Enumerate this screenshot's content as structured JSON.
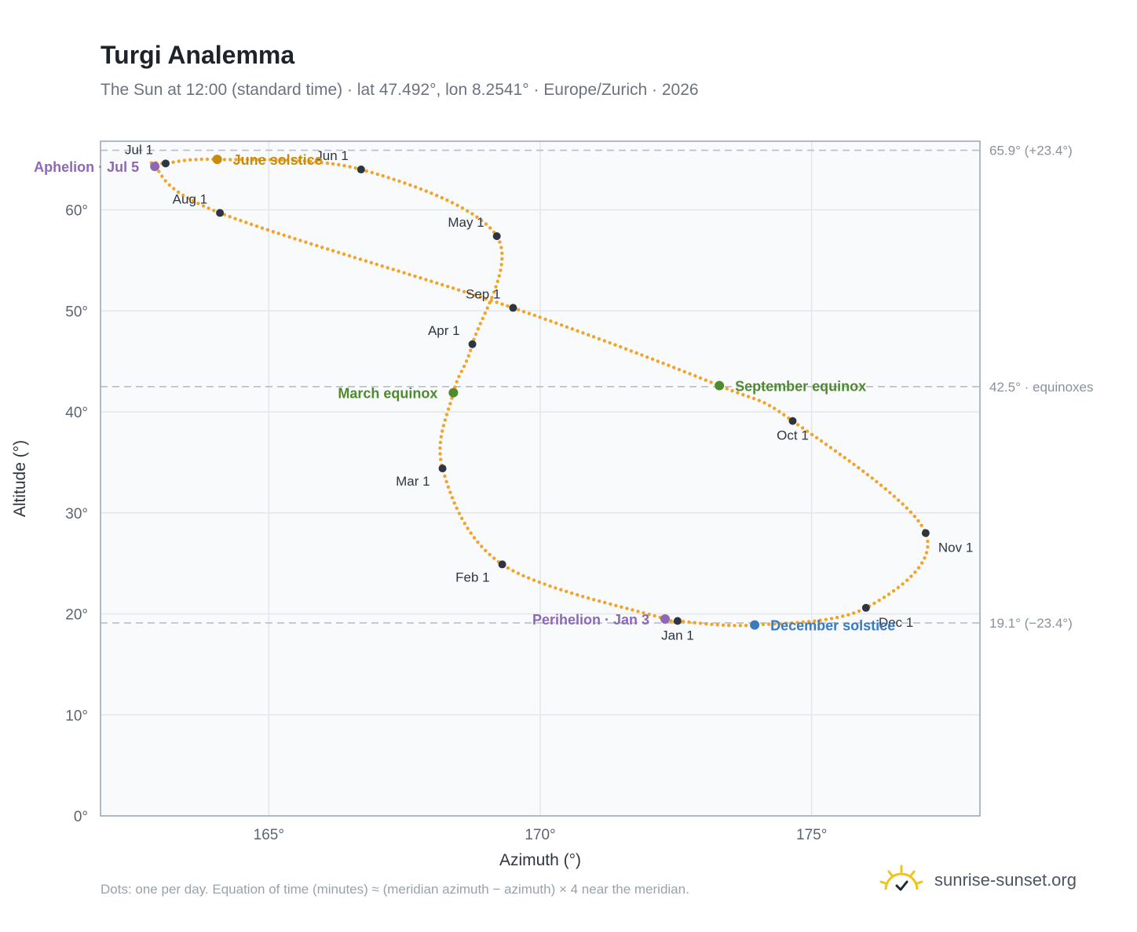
{
  "header": {
    "title": "Turgi Analemma",
    "subtitle": "The Sun at 12:00 (standard time) · lat 47.492°, lon 8.2541° · Europe/Zurich · 2026"
  },
  "footer": {
    "note": "Dots: one per day. Equation of time (minutes) ≈ (meridian azimuth − azimuth) × 4 near the meridian.",
    "brand": "sunrise-sunset.org",
    "brand_icon": "sun-check-icon"
  },
  "colors": {
    "path": "#f2a42a",
    "month_marker": "#2f3540",
    "solstice_june": "#c98c0a",
    "equinox": "#4f8a2e",
    "solstice_december": "#3b7abf",
    "apsis": "#8e68b6",
    "plot_background": "#f8fafc",
    "grid": "#e3e7ec",
    "frame": "#9aa3b0",
    "reference_line": "#b8bec7"
  },
  "chart_data": {
    "type": "scatter",
    "xlabel": "Azimuth (°)",
    "ylabel": "Altitude (°)",
    "xlim": [
      161.9,
      178.1
    ],
    "ylim": [
      0,
      66.8
    ],
    "x_ticks": [
      {
        "value": 165,
        "label": "165°"
      },
      {
        "value": 170,
        "label": "170°"
      },
      {
        "value": 175,
        "label": "175°"
      }
    ],
    "y_ticks": [
      {
        "value": 0,
        "label": "0°"
      },
      {
        "value": 10,
        "label": "10°"
      },
      {
        "value": 20,
        "label": "20°"
      },
      {
        "value": 30,
        "label": "30°"
      },
      {
        "value": 40,
        "label": "40°"
      },
      {
        "value": 50,
        "label": "50°"
      },
      {
        "value": 60,
        "label": "60°"
      }
    ],
    "grid": true,
    "reference_lines": [
      {
        "altitude": 65.9,
        "label": "65.9° (+23.4°)"
      },
      {
        "altitude": 42.5,
        "label": "42.5° · equinoxes"
      },
      {
        "altitude": 19.1,
        "label": "19.1° (−23.4°)"
      }
    ],
    "path_anchors": [
      {
        "date": "Jan 1",
        "azimuth": 172.53,
        "altitude": 19.3
      },
      {
        "date": "Jan 3",
        "azimuth": 172.3,
        "altitude": 19.5
      },
      {
        "date": "Feb 1",
        "azimuth": 169.3,
        "altitude": 24.9
      },
      {
        "date": "Mar 1",
        "azimuth": 168.2,
        "altitude": 34.4
      },
      {
        "date": "Mar 20",
        "azimuth": 168.4,
        "altitude": 41.9
      },
      {
        "date": "Apr 1",
        "azimuth": 168.75,
        "altitude": 46.7
      },
      {
        "date": "May 1",
        "azimuth": 169.2,
        "altitude": 57.4
      },
      {
        "date": "Jun 1",
        "azimuth": 166.7,
        "altitude": 64.0
      },
      {
        "date": "Jun 21",
        "azimuth": 164.05,
        "altitude": 65.0
      },
      {
        "date": "Jul 1",
        "azimuth": 163.1,
        "altitude": 64.6
      },
      {
        "date": "Jul 5",
        "azimuth": 162.9,
        "altitude": 64.3
      },
      {
        "date": "Aug 1",
        "azimuth": 164.1,
        "altitude": 59.7
      },
      {
        "date": "Sep 1",
        "azimuth": 169.5,
        "altitude": 50.3
      },
      {
        "date": "Sep 23",
        "azimuth": 173.3,
        "altitude": 42.6
      },
      {
        "date": "Oct 1",
        "azimuth": 174.65,
        "altitude": 39.1
      },
      {
        "date": "Nov 1",
        "azimuth": 177.1,
        "altitude": 28.0
      },
      {
        "date": "Dec 1",
        "azimuth": 176.0,
        "altitude": 20.6
      },
      {
        "date": "Dec 21",
        "azimuth": 173.95,
        "altitude": 18.9
      },
      {
        "date": "Jan 1 (next)",
        "azimuth": 172.53,
        "altitude": 19.3
      }
    ],
    "month_markers": [
      {
        "label": "Jan 1",
        "azimuth": 172.53,
        "altitude": 19.3,
        "label_pos": "below"
      },
      {
        "label": "Feb 1",
        "azimuth": 169.3,
        "altitude": 24.9,
        "label_pos": "below-left"
      },
      {
        "label": "Mar 1",
        "azimuth": 168.2,
        "altitude": 34.4,
        "label_pos": "below-left"
      },
      {
        "label": "Apr 1",
        "azimuth": 168.75,
        "altitude": 46.7,
        "label_pos": "above-left"
      },
      {
        "label": "May 1",
        "azimuth": 169.2,
        "altitude": 57.4,
        "label_pos": "above-left"
      },
      {
        "label": "Jun 1",
        "azimuth": 166.7,
        "altitude": 64.0,
        "label_pos": "above-left"
      },
      {
        "label": "Jul 1",
        "azimuth": 163.1,
        "altitude": 64.6,
        "label_pos": "above-left"
      },
      {
        "label": "Aug 1",
        "azimuth": 164.1,
        "altitude": 59.7,
        "label_pos": "above-left"
      },
      {
        "label": "Sep 1",
        "azimuth": 169.5,
        "altitude": 50.3,
        "label_pos": "above-left"
      },
      {
        "label": "Oct 1",
        "azimuth": 174.65,
        "altitude": 39.1,
        "label_pos": "below"
      },
      {
        "label": "Nov 1",
        "azimuth": 177.1,
        "altitude": 28.0,
        "label_pos": "right"
      },
      {
        "label": "Dec 1",
        "azimuth": 176.0,
        "altitude": 20.6,
        "label_pos": "right"
      }
    ],
    "events": [
      {
        "label": "June solstice",
        "azimuth": 164.05,
        "altitude": 65.0,
        "color_key": "solstice_june",
        "label_pos": "right"
      },
      {
        "label": "March equinox",
        "azimuth": 168.4,
        "altitude": 41.9,
        "color_key": "equinox",
        "label_pos": "left"
      },
      {
        "label": "September equinox",
        "azimuth": 173.3,
        "altitude": 42.6,
        "color_key": "equinox",
        "label_pos": "right"
      },
      {
        "label": "December solstice",
        "azimuth": 173.95,
        "altitude": 18.9,
        "color_key": "solstice_december",
        "label_pos": "right"
      },
      {
        "label": "Aphelion · Jul 5",
        "azimuth": 162.9,
        "altitude": 64.3,
        "color_key": "apsis",
        "label_pos": "left"
      },
      {
        "label": "Perihelion · Jan 3",
        "azimuth": 172.3,
        "altitude": 19.5,
        "color_key": "apsis",
        "label_pos": "left"
      }
    ]
  }
}
